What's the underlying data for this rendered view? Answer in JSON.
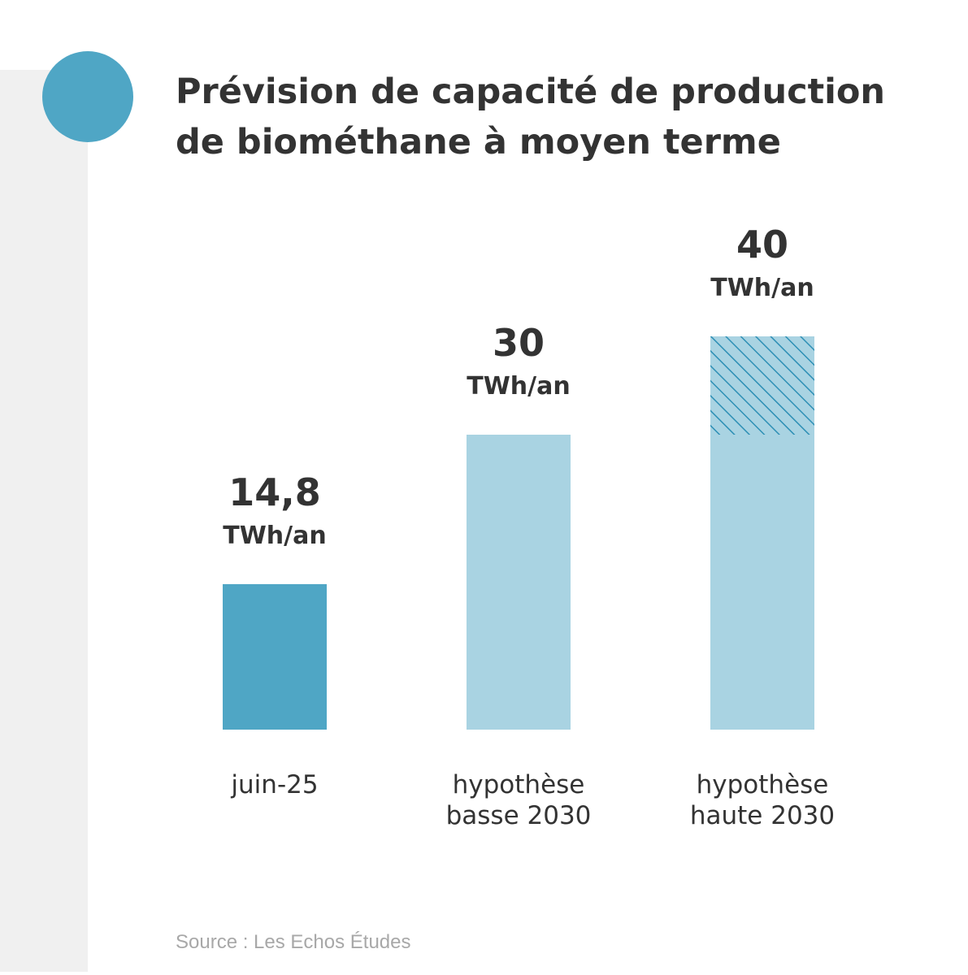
{
  "header": {
    "title_line1": "Prévision de capacité de production",
    "title_line2": "de biométhane à moyen terme"
  },
  "source": "Source : Les Echos Études",
  "colors": {
    "accent": "#4fa6c5",
    "bar_light": "#a9d3e2",
    "hatch": "#2d8fb5",
    "text": "#333333",
    "background_band": "#f0f0f0"
  },
  "chart_data": {
    "type": "bar",
    "title": "",
    "xlabel": "",
    "ylabel": "",
    "ylim": [
      0,
      40
    ],
    "unit": "TWh/an",
    "bars": [
      {
        "label": "juin-25",
        "value": 14.8,
        "value_label": "14,8",
        "unit_label": "TWh/an",
        "style": "dark"
      },
      {
        "label": "hypothèse basse 2030",
        "value": 30,
        "value_label": "30",
        "unit_label": "TWh/an",
        "style": "light"
      },
      {
        "label": "hypothèse haute 2030",
        "value": 40,
        "value_label": "40",
        "unit_label": "TWh/an",
        "style": "light-hatched",
        "hatched_from": 30
      }
    ],
    "grid": false,
    "legend": "none"
  }
}
